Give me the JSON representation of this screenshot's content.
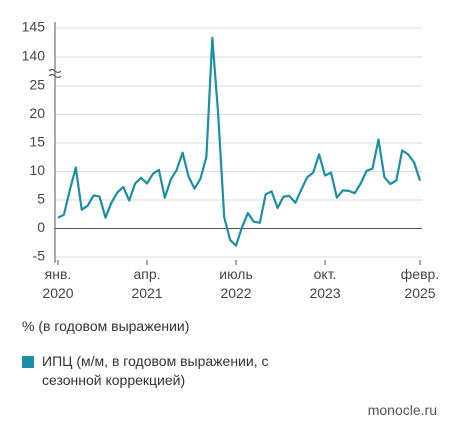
{
  "chart_data": {
    "type": "line",
    "x": [
      "2020-01",
      "2020-02",
      "2020-03",
      "2020-04",
      "2020-05",
      "2020-06",
      "2020-07",
      "2020-08",
      "2020-09",
      "2020-10",
      "2020-11",
      "2020-12",
      "2021-01",
      "2021-02",
      "2021-03",
      "2021-04",
      "2021-05",
      "2021-06",
      "2021-07",
      "2021-08",
      "2021-09",
      "2021-10",
      "2021-11",
      "2021-12",
      "2022-01",
      "2022-02",
      "2022-03",
      "2022-04",
      "2022-05",
      "2022-06",
      "2022-07",
      "2022-08",
      "2022-09",
      "2022-10",
      "2022-11",
      "2022-12",
      "2023-01",
      "2023-02",
      "2023-03",
      "2023-04",
      "2023-05",
      "2023-06",
      "2023-07",
      "2023-08",
      "2023-09",
      "2023-10",
      "2023-11",
      "2023-12",
      "2024-01",
      "2024-02",
      "2024-03",
      "2024-04",
      "2024-05",
      "2024-06",
      "2024-07",
      "2024-08",
      "2024-09",
      "2024-10",
      "2024-11",
      "2024-12",
      "2025-01",
      "2025-02"
    ],
    "series": [
      {
        "name": "ИПЦ (м/м, в годовом выражении, с сезонной коррекцией)",
        "color": "#1a8fa6",
        "values": [
          1.9,
          2.4,
          6.8,
          10.7,
          3.3,
          4.0,
          5.8,
          5.6,
          1.9,
          4.5,
          6.3,
          7.3,
          4.9,
          7.9,
          8.9,
          7.9,
          9.6,
          10.3,
          5.4,
          8.6,
          10.3,
          13.3,
          9.1,
          7.0,
          8.7,
          12.6,
          143.3,
          20,
          2.0,
          -2.0,
          -3.0,
          0.2,
          2.7,
          1.2,
          1.0,
          6.0,
          6.5,
          3.6,
          5.6,
          5.7,
          4.5,
          6.8,
          9.0,
          9.8,
          13.0,
          9.3,
          9.8,
          5.4,
          6.7,
          6.6,
          6.2,
          7.9,
          10.1,
          10.5,
          15.6,
          9.0,
          7.8,
          8.4,
          13.7,
          13.0,
          11.6,
          8.4
        ]
      }
    ],
    "ylim": [
      -5,
      145
    ],
    "ybreak": [
      25,
      140
    ],
    "yticks": [
      -5,
      0,
      5,
      10,
      15,
      20,
      25,
      140,
      145
    ],
    "xticks": [
      {
        "value": "2020-01",
        "label": "янв. 2020"
      },
      {
        "value": "2021-04",
        "label": "апр. 2021"
      },
      {
        "value": "2022-07",
        "label": "июль 2022"
      },
      {
        "value": "2023-10",
        "label": "окт. 2023"
      },
      {
        "value": "2025-02",
        "label": "февр. 2025"
      }
    ],
    "grid": true,
    "y_label": "% (в годовом выражении)",
    "source": "monocle.ru"
  }
}
